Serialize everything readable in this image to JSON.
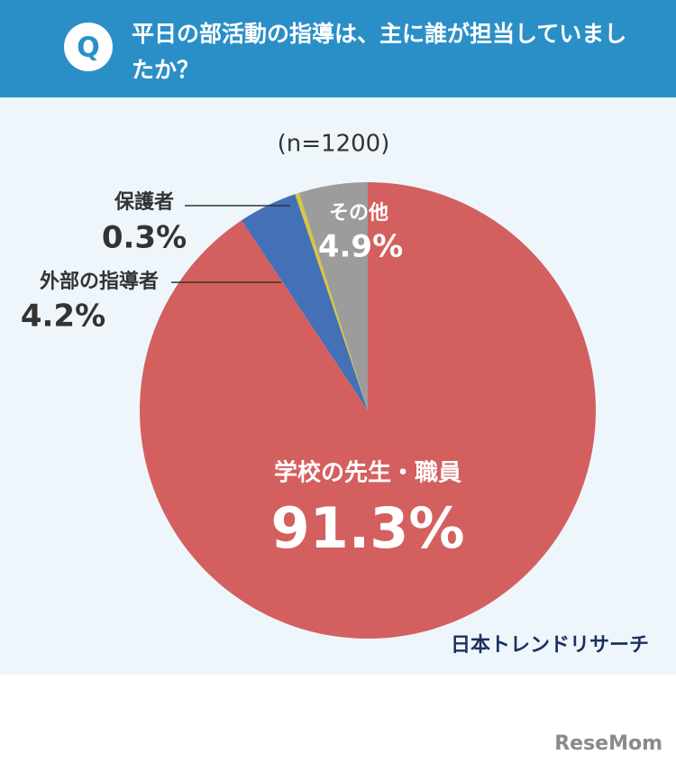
{
  "question": {
    "badge": "Q",
    "text": "平日の部活動の指導は、主に誰が担当していましたか？"
  },
  "chart_data": {
    "type": "pie",
    "subtitle": "(n=1200)",
    "categories": [
      "学校の先生・職員",
      "外部の指導者",
      "保護者",
      "その他"
    ],
    "values": [
      91.3,
      4.2,
      0.3,
      4.9
    ],
    "value_labels": [
      "91.3%",
      "4.2%",
      "0.3%",
      "4.9%"
    ],
    "colors": [
      "#d45f5f",
      "#4470b8",
      "#d8c63f",
      "#9c9c9c"
    ]
  },
  "source": "日本トレンドリサーチ",
  "watermark": "ReseMom"
}
